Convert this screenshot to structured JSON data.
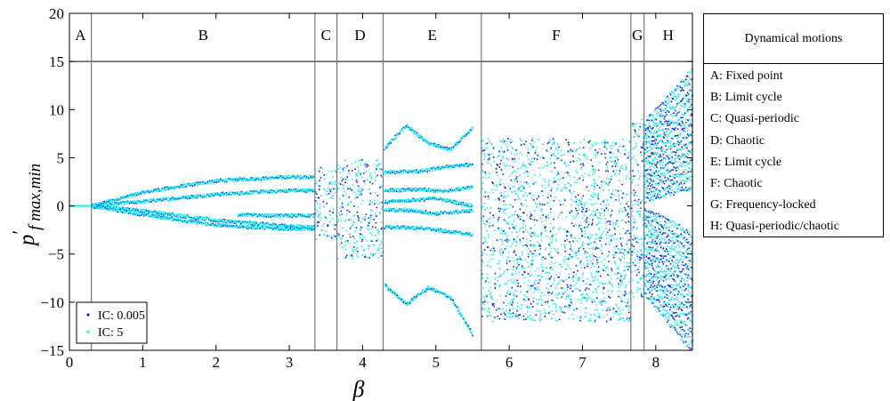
{
  "chart_data": {
    "type": "scatter",
    "xlabel": "β",
    "ylabel_main": "p",
    "ylabel_prime": "′",
    "ylabel_sub": "f max,min",
    "xlim": [
      0,
      8.5
    ],
    "ylim": [
      -15,
      20
    ],
    "xticks": [
      0,
      1,
      2,
      3,
      4,
      5,
      6,
      7,
      8
    ],
    "yticks": [
      -15,
      -10,
      -5,
      0,
      5,
      10,
      15,
      20
    ],
    "grid": false,
    "header_line_y": 15,
    "regions": [
      {
        "label": "A",
        "start": 0,
        "end": 0.3
      },
      {
        "label": "B",
        "start": 0.3,
        "end": 3.35
      },
      {
        "label": "C",
        "start": 3.35,
        "end": 3.65
      },
      {
        "label": "D",
        "start": 3.65,
        "end": 4.28
      },
      {
        "label": "E",
        "start": 4.28,
        "end": 5.62
      },
      {
        "label": "F",
        "start": 5.62,
        "end": 7.66
      },
      {
        "label": "G",
        "start": 7.66,
        "end": 7.84
      },
      {
        "label": "H",
        "start": 7.84,
        "end": 8.5
      }
    ],
    "series": [
      {
        "name": "IC: 0.005",
        "color": "#1a1ae6",
        "marker": "dot"
      },
      {
        "name": "IC: 5",
        "color": "#19f0f0",
        "marker": "dot"
      }
    ],
    "branches": [
      {
        "x": [
          0.3,
          1.0,
          2.0,
          3.0,
          3.35
        ],
        "y": [
          0,
          1.4,
          2.6,
          3.0,
          3.0
        ]
      },
      {
        "x": [
          0.3,
          1.0,
          2.0,
          3.0,
          3.35
        ],
        "y": [
          0,
          0.45,
          1.2,
          1.6,
          1.6
        ]
      },
      {
        "x": [
          0.3,
          1.0,
          2.0,
          3.0,
          3.35
        ],
        "y": [
          0,
          -0.5,
          -1.5,
          -2.1,
          -2.2
        ]
      },
      {
        "x": [
          0.3,
          1.0,
          2.0,
          3.0,
          3.35
        ],
        "y": [
          0,
          -0.9,
          -2.0,
          -2.4,
          -2.4
        ]
      },
      {
        "x": [
          2.3,
          2.7,
          3.0,
          3.35
        ],
        "y": [
          -0.9,
          -1.0,
          -1.0,
          -1.0
        ]
      },
      {
        "x": [
          4.3,
          4.6,
          4.9,
          5.2,
          5.5
        ],
        "y": [
          6.0,
          8.3,
          6.5,
          5.8,
          8.0
        ]
      },
      {
        "x": [
          4.3,
          4.8,
          5.1,
          5.5
        ],
        "y": [
          3.5,
          3.6,
          4.0,
          4.3
        ]
      },
      {
        "x": [
          4.3,
          4.8,
          5.1,
          5.5
        ],
        "y": [
          1.6,
          1.7,
          1.5,
          2.0
        ]
      },
      {
        "x": [
          4.3,
          4.7,
          5.0,
          5.5
        ],
        "y": [
          0.4,
          0.6,
          0.8,
          0.0
        ]
      },
      {
        "x": [
          4.3,
          4.7,
          5.0,
          5.5
        ],
        "y": [
          -0.4,
          -0.5,
          -0.8,
          -0.5
        ]
      },
      {
        "x": [
          4.3,
          4.8,
          5.1,
          5.5
        ],
        "y": [
          -2.2,
          -2.3,
          -2.6,
          -3.0
        ]
      },
      {
        "x": [
          4.3,
          4.6,
          4.9,
          5.2,
          5.5
        ],
        "y": [
          -8.2,
          -10.2,
          -8.5,
          -9.5,
          -13.3
        ]
      }
    ],
    "clouds": [
      {
        "x": [
          3.35,
          3.65
        ],
        "y": [
          -3.5,
          4.0
        ]
      },
      {
        "x": [
          3.65,
          4.28
        ],
        "y": [
          -5.5,
          4.8
        ]
      },
      {
        "x": [
          5.62,
          7.66
        ],
        "y": [
          -12.0,
          7.0
        ]
      },
      {
        "x": [
          7.66,
          7.84
        ],
        "y": [
          -9.5,
          9.0
        ]
      }
    ],
    "fans": [
      {
        "x": [
          7.84,
          8.5
        ],
        "y_start": [
          0.5,
          8.5
        ],
        "y_end": [
          2.0,
          14.0
        ]
      },
      {
        "x": [
          7.84,
          8.5
        ],
        "y_start": [
          -9.0,
          -0.2
        ],
        "y_end": [
          -15.0,
          -3.0
        ]
      }
    ]
  },
  "legend": {
    "ic_small": "IC: 0.005",
    "ic_large": "IC: 5"
  },
  "motions_table": {
    "title": "Dynamical motions",
    "items": [
      "A: Fixed point",
      "B: Limit cycle",
      "C: Quasi-periodic",
      "D: Chaotic",
      "E: Limit cycle",
      "F: Chaotic",
      "G: Frequency-locked",
      "H: Quasi-periodic/chaotic"
    ]
  }
}
